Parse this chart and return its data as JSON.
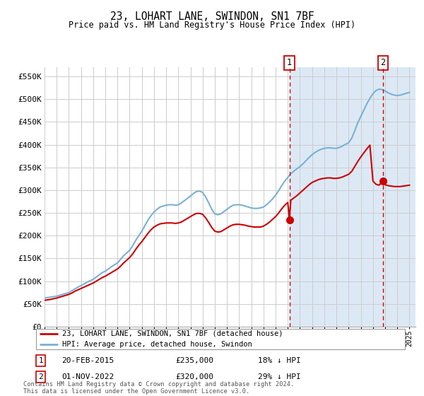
{
  "title": "23, LOHART LANE, SWINDON, SN1 7BF",
  "subtitle": "Price paid vs. HM Land Registry's House Price Index (HPI)",
  "ylim": [
    0,
    570000
  ],
  "yticks": [
    0,
    50000,
    100000,
    150000,
    200000,
    250000,
    300000,
    350000,
    400000,
    450000,
    500000,
    550000
  ],
  "ytick_labels": [
    "£0",
    "£50K",
    "£100K",
    "£150K",
    "£200K",
    "£250K",
    "£300K",
    "£350K",
    "£400K",
    "£450K",
    "£500K",
    "£550K"
  ],
  "xlim_start": 1995.0,
  "xlim_end": 2025.5,
  "background_color": "#ffffff",
  "plot_bg_color": "#ffffff",
  "grid_color": "#cccccc",
  "highlight_bg_color": "#dce9f5",
  "marker1_date": 2015.13,
  "marker2_date": 2022.83,
  "marker1_price": 235000,
  "marker2_price": 320000,
  "sale1_text": "20-FEB-2015",
  "sale1_price_text": "£235,000",
  "sale1_hpi_text": "18% ↓ HPI",
  "sale2_text": "01-NOV-2022",
  "sale2_price_text": "£320,000",
  "sale2_hpi_text": "29% ↓ HPI",
  "legend_line1": "23, LOHART LANE, SWINDON, SN1 7BF (detached house)",
  "legend_line2": "HPI: Average price, detached house, Swindon",
  "footer": "Contains HM Land Registry data © Crown copyright and database right 2024.\nThis data is licensed under the Open Government Licence v3.0.",
  "line_color_red": "#cc0000",
  "line_color_blue": "#7ab0d4",
  "dashed_line_color": "#cc0000",
  "hpi_years": [
    1995.0,
    1995.25,
    1995.5,
    1995.75,
    1996.0,
    1996.25,
    1996.5,
    1996.75,
    1997.0,
    1997.25,
    1997.5,
    1997.75,
    1998.0,
    1998.25,
    1998.5,
    1998.75,
    1999.0,
    1999.25,
    1999.5,
    1999.75,
    2000.0,
    2000.25,
    2000.5,
    2000.75,
    2001.0,
    2001.25,
    2001.5,
    2001.75,
    2002.0,
    2002.25,
    2002.5,
    2002.75,
    2003.0,
    2003.25,
    2003.5,
    2003.75,
    2004.0,
    2004.25,
    2004.5,
    2004.75,
    2005.0,
    2005.25,
    2005.5,
    2005.75,
    2006.0,
    2006.25,
    2006.5,
    2006.75,
    2007.0,
    2007.25,
    2007.5,
    2007.75,
    2008.0,
    2008.25,
    2008.5,
    2008.75,
    2009.0,
    2009.25,
    2009.5,
    2009.75,
    2010.0,
    2010.25,
    2010.5,
    2010.75,
    2011.0,
    2011.25,
    2011.5,
    2011.75,
    2012.0,
    2012.25,
    2012.5,
    2012.75,
    2013.0,
    2013.25,
    2013.5,
    2013.75,
    2014.0,
    2014.25,
    2014.5,
    2014.75,
    2015.0,
    2015.25,
    2015.5,
    2015.75,
    2016.0,
    2016.25,
    2016.5,
    2016.75,
    2017.0,
    2017.25,
    2017.5,
    2017.75,
    2018.0,
    2018.25,
    2018.5,
    2018.75,
    2019.0,
    2019.25,
    2019.5,
    2019.75,
    2020.0,
    2020.25,
    2020.5,
    2020.75,
    2021.0,
    2021.25,
    2021.5,
    2021.75,
    2022.0,
    2022.25,
    2022.5,
    2022.75,
    2023.0,
    2023.25,
    2023.5,
    2023.75,
    2024.0,
    2024.25,
    2024.5,
    2024.75,
    2025.0
  ],
  "hpi_values": [
    63000,
    64000,
    65000,
    66000,
    67000,
    69000,
    71000,
    73000,
    75000,
    79000,
    83000,
    87000,
    90000,
    94000,
    98000,
    101000,
    104000,
    109000,
    114000,
    119000,
    122000,
    127000,
    132000,
    136000,
    140000,
    148000,
    156000,
    162000,
    168000,
    178000,
    190000,
    200000,
    210000,
    222000,
    234000,
    244000,
    252000,
    258000,
    263000,
    265000,
    267000,
    268000,
    268000,
    267000,
    268000,
    272000,
    277000,
    282000,
    287000,
    293000,
    297000,
    298000,
    295000,
    285000,
    272000,
    258000,
    248000,
    246000,
    248000,
    253000,
    258000,
    263000,
    267000,
    268000,
    268000,
    267000,
    265000,
    263000,
    261000,
    260000,
    260000,
    261000,
    263000,
    268000,
    274000,
    281000,
    289000,
    299000,
    310000,
    320000,
    328000,
    336000,
    342000,
    347000,
    352000,
    358000,
    365000,
    372000,
    378000,
    383000,
    387000,
    390000,
    392000,
    393000,
    393000,
    392000,
    392000,
    394000,
    397000,
    401000,
    404000,
    414000,
    430000,
    448000,
    462000,
    476000,
    490000,
    502000,
    512000,
    519000,
    522000,
    521000,
    518000,
    514000,
    511000,
    509000,
    508000,
    509000,
    511000,
    513000,
    515000
  ],
  "price_years": [
    1995.0,
    1995.25,
    1995.5,
    1995.75,
    1996.0,
    1996.25,
    1996.5,
    1996.75,
    1997.0,
    1997.25,
    1997.5,
    1997.75,
    1998.0,
    1998.25,
    1998.5,
    1998.75,
    1999.0,
    1999.25,
    1999.5,
    1999.75,
    2000.0,
    2000.25,
    2000.5,
    2000.75,
    2001.0,
    2001.25,
    2001.5,
    2001.75,
    2002.0,
    2002.25,
    2002.5,
    2002.75,
    2003.0,
    2003.25,
    2003.5,
    2003.75,
    2004.0,
    2004.25,
    2004.5,
    2004.75,
    2005.0,
    2005.25,
    2005.5,
    2005.75,
    2006.0,
    2006.25,
    2006.5,
    2006.75,
    2007.0,
    2007.25,
    2007.5,
    2007.75,
    2008.0,
    2008.25,
    2008.5,
    2008.75,
    2009.0,
    2009.25,
    2009.5,
    2009.75,
    2010.0,
    2010.25,
    2010.5,
    2010.75,
    2011.0,
    2011.25,
    2011.5,
    2011.75,
    2012.0,
    2012.25,
    2012.5,
    2012.75,
    2013.0,
    2013.25,
    2013.5,
    2013.75,
    2014.0,
    2014.25,
    2014.5,
    2014.75,
    2015.0,
    2015.13,
    2015.25,
    2015.5,
    2015.75,
    2016.0,
    2016.25,
    2016.5,
    2016.75,
    2017.0,
    2017.25,
    2017.5,
    2017.75,
    2018.0,
    2018.25,
    2018.5,
    2018.75,
    2019.0,
    2019.25,
    2019.5,
    2019.75,
    2020.0,
    2020.25,
    2020.5,
    2020.75,
    2021.0,
    2021.25,
    2021.5,
    2021.75,
    2022.0,
    2022.25,
    2022.5,
    2022.83,
    2023.0,
    2023.25,
    2023.5,
    2023.75,
    2024.0,
    2024.25,
    2024.5,
    2024.75,
    2025.0
  ],
  "price_values": [
    58000,
    59000,
    60000,
    61500,
    63000,
    65000,
    67000,
    69000,
    71000,
    74000,
    78000,
    81000,
    84000,
    87000,
    90000,
    93000,
    96000,
    100000,
    104000,
    108000,
    111000,
    115000,
    119000,
    123000,
    127000,
    133000,
    140000,
    146000,
    152000,
    160000,
    170000,
    179000,
    187000,
    196000,
    205000,
    213000,
    219000,
    223000,
    226000,
    227000,
    228000,
    228000,
    228000,
    227000,
    228000,
    230000,
    234000,
    238000,
    242000,
    246000,
    249000,
    249000,
    247000,
    239000,
    229000,
    218000,
    210000,
    208000,
    209000,
    213000,
    217000,
    221000,
    224000,
    225000,
    225000,
    224000,
    223000,
    221000,
    220000,
    219000,
    219000,
    219000,
    221000,
    225000,
    230000,
    236000,
    242000,
    250000,
    259000,
    267000,
    273000,
    235000,
    278000,
    283000,
    288000,
    294000,
    300000,
    306000,
    312000,
    317000,
    320000,
    323000,
    325000,
    326000,
    327000,
    327000,
    326000,
    326000,
    327000,
    329000,
    332000,
    335000,
    341000,
    352000,
    363000,
    373000,
    382000,
    391000,
    399000,
    320000,
    313000,
    311000,
    320000,
    312000,
    310000,
    309000,
    308000,
    308000,
    308000,
    309000,
    310000,
    311000
  ]
}
